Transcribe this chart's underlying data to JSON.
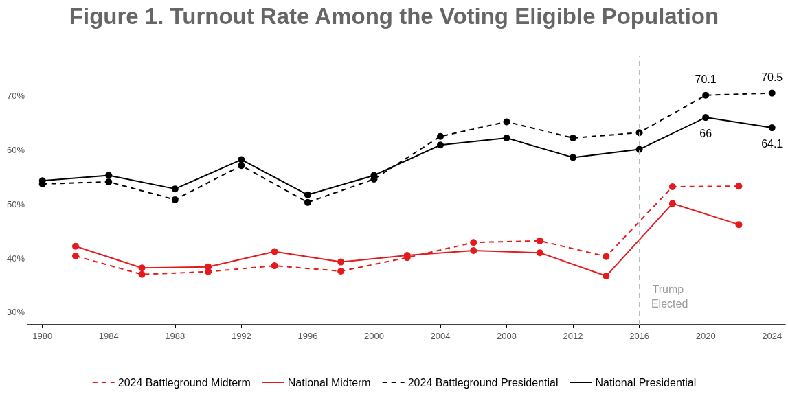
{
  "chart_data": {
    "type": "line",
    "title": "Figure 1. Turnout Rate Among the Voting Eligible Population",
    "xlim": [
      1979.1,
      2024.8
    ],
    "xticks": [
      1980,
      1984,
      1988,
      1992,
      1996,
      2000,
      2004,
      2008,
      2012,
      2016,
      2020,
      2024
    ],
    "ylim": [
      27.7,
      77.3
    ],
    "yticks": [
      {
        "value": 30,
        "label": "30%"
      },
      {
        "value": 40,
        "label": "40%"
      },
      {
        "value": 50,
        "label": "50%"
      },
      {
        "value": 60,
        "label": "60%"
      },
      {
        "value": 70,
        "label": "70%"
      }
    ],
    "grid": false,
    "legend": "bottom",
    "marker": "circle",
    "ref_lines": [
      {
        "axis": "x",
        "value": 2016,
        "label": "Trump Elected",
        "color": "#bbbbbb",
        "line_style": "dashed"
      }
    ],
    "series": [
      {
        "name": "2024 Battleground Midterm",
        "color": "#e41a1c",
        "line_style": "dashed",
        "x": [
          1982,
          1986,
          1990,
          1994,
          1998,
          2002,
          2006,
          2010,
          2014,
          2018,
          2022
        ],
        "values": [
          40.4,
          37.0,
          37.5,
          38.6,
          37.6,
          40.1,
          42.9,
          43.2,
          40.3,
          53.2,
          53.3
        ]
      },
      {
        "name": "National Midterm",
        "color": "#e41a1c",
        "line_style": "solid",
        "x": [
          1982,
          1986,
          1990,
          1994,
          1998,
          2002,
          2006,
          2010,
          2014,
          2018,
          2022
        ],
        "values": [
          42.2,
          38.2,
          38.4,
          41.2,
          39.3,
          40.5,
          41.4,
          41.0,
          36.7,
          50.1,
          46.2
        ]
      },
      {
        "name": "2024 Battleground Presidential",
        "color": "#000000",
        "line_style": "dashed",
        "x": [
          1980,
          1984,
          1988,
          1992,
          1996,
          2000,
          2004,
          2008,
          2012,
          2016,
          2020,
          2024
        ],
        "values": [
          53.7,
          54.1,
          50.8,
          57.1,
          50.3,
          54.6,
          62.5,
          65.2,
          62.2,
          63.2,
          70.1,
          70.5
        ],
        "value_labels": [
          null,
          null,
          null,
          null,
          null,
          null,
          null,
          null,
          null,
          null,
          "70.1",
          "70.5"
        ]
      },
      {
        "name": "National Presidential",
        "color": "#000000",
        "line_style": "solid",
        "x": [
          1980,
          1984,
          1988,
          1992,
          1996,
          2000,
          2004,
          2008,
          2012,
          2016,
          2020,
          2024
        ],
        "values": [
          54.3,
          55.3,
          52.8,
          58.2,
          51.7,
          55.3,
          60.9,
          62.2,
          58.6,
          60.1,
          66,
          64.1
        ],
        "value_labels": [
          null,
          null,
          null,
          null,
          null,
          null,
          null,
          null,
          null,
          null,
          "66",
          "64.1"
        ]
      }
    ]
  }
}
